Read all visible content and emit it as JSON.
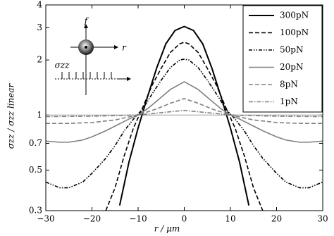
{
  "chart_data": {
    "type": "line",
    "x_label": "r / μm",
    "y_label": "σzz / σzz linear",
    "annotations": [
      "f",
      "r",
      "σzz"
    ],
    "xlim": [
      -30,
      30
    ],
    "xticks": [
      {
        "value": -30,
        "label": "−30"
      },
      {
        "value": -20,
        "label": "−20"
      },
      {
        "value": -10,
        "label": "−10"
      },
      0,
      10,
      20,
      30
    ],
    "ylim": [
      0.3,
      4
    ],
    "yticks": [
      0.3,
      0.5,
      0.7,
      1,
      2,
      3,
      4
    ],
    "log_y": true,
    "reference_line": 1,
    "legend": "upper right",
    "series": [
      {
        "name": "300pN",
        "color": "#000000",
        "style": "solid",
        "x": [
          -14,
          -12,
          -10,
          -8,
          -6,
          -4,
          -2,
          0,
          2,
          4,
          6,
          8,
          10,
          12,
          14
        ],
        "values": [
          0.32,
          0.55,
          0.85,
          1.25,
          1.8,
          2.45,
          2.9,
          3.05,
          2.9,
          2.45,
          1.8,
          1.25,
          0.85,
          0.55,
          0.32
        ]
      },
      {
        "name": "100pN",
        "color": "#000000",
        "style": "dashed",
        "x": [
          -17,
          -15,
          -13,
          -11,
          -9,
          -7,
          -5,
          -3,
          -1,
          0,
          1,
          3,
          5,
          7,
          9,
          11,
          13,
          15,
          17
        ],
        "values": [
          0.3,
          0.4,
          0.6,
          0.85,
          1.1,
          1.45,
          1.8,
          2.2,
          2.45,
          2.5,
          2.45,
          2.2,
          1.8,
          1.45,
          1.1,
          0.85,
          0.6,
          0.4,
          0.3
        ]
      },
      {
        "name": "50pN",
        "color": "#000000",
        "style": "dashdotdot",
        "x": [
          -30,
          -27,
          -25,
          -22,
          -20,
          -17,
          -15,
          -13,
          -11,
          -9,
          -7,
          -5,
          -3,
          -1,
          0,
          1,
          3,
          5,
          7,
          9,
          11,
          13,
          15,
          17,
          20,
          22,
          25,
          27,
          30
        ],
        "values": [
          0.43,
          0.4,
          0.4,
          0.43,
          0.48,
          0.58,
          0.68,
          0.82,
          0.95,
          1.08,
          1.3,
          1.55,
          1.82,
          2.0,
          2.02,
          2.0,
          1.82,
          1.55,
          1.3,
          1.08,
          0.95,
          0.82,
          0.68,
          0.58,
          0.48,
          0.43,
          0.4,
          0.4,
          0.43
        ]
      },
      {
        "name": "20pN",
        "color": "#808080",
        "style": "solid",
        "x": [
          -30,
          -27,
          -25,
          -22,
          -20,
          -17,
          -15,
          -12,
          -10,
          -8,
          -5,
          -3,
          0,
          3,
          5,
          8,
          10,
          12,
          15,
          17,
          20,
          22,
          25,
          27,
          30
        ],
        "values": [
          0.72,
          0.71,
          0.71,
          0.73,
          0.76,
          0.82,
          0.87,
          0.95,
          1.0,
          1.08,
          1.25,
          1.38,
          1.52,
          1.38,
          1.25,
          1.08,
          1.0,
          0.95,
          0.87,
          0.82,
          0.76,
          0.73,
          0.71,
          0.71,
          0.72
        ]
      },
      {
        "name": "8pN",
        "color": "#808080",
        "style": "dashed",
        "x": [
          -30,
          -25,
          -20,
          -15,
          -10,
          -6,
          -3,
          0,
          3,
          6,
          10,
          15,
          20,
          25,
          30
        ],
        "values": [
          0.9,
          0.9,
          0.91,
          0.94,
          1.0,
          1.08,
          1.16,
          1.23,
          1.16,
          1.08,
          1.0,
          0.94,
          0.91,
          0.9,
          0.9
        ]
      },
      {
        "name": "1pN",
        "color": "#808080",
        "style": "dashdot",
        "x": [
          -30,
          -20,
          -10,
          -5,
          0,
          5,
          10,
          20,
          30
        ],
        "values": [
          0.98,
          0.985,
          1.0,
          1.03,
          1.06,
          1.03,
          1.0,
          0.985,
          0.98
        ]
      }
    ]
  }
}
